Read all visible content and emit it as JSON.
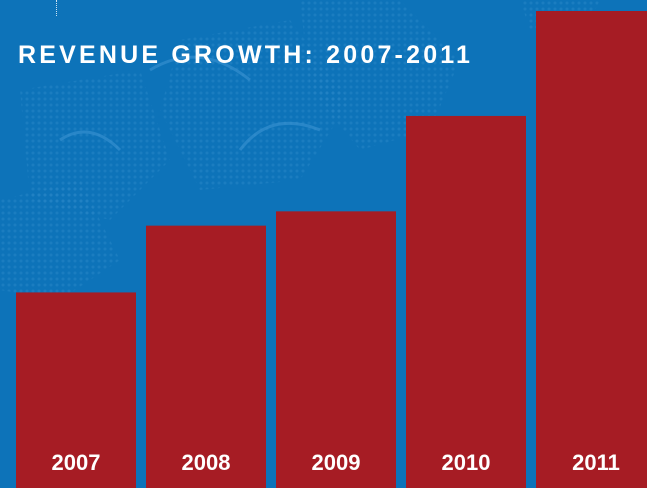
{
  "colors": {
    "background": "#0d73b9",
    "bar": "#a61c24",
    "title_text": "#ffffff",
    "label_text": "#ffffff"
  },
  "chart_data": {
    "type": "bar",
    "title": "REVENUE GROWTH: 2007-2011",
    "categories": [
      "2007",
      "2008",
      "2009",
      "2010",
      "2011"
    ],
    "values": [
      41,
      55,
      58,
      78,
      100
    ],
    "value_axis_shown": false,
    "grid": false,
    "legend": "none"
  }
}
